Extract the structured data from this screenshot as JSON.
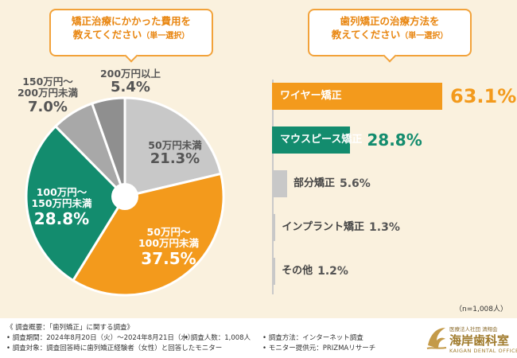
{
  "questions": {
    "q1_line1": "矯正治療にかかった費用を",
    "q1_line2": "教えてください",
    "q1_sub": "（単一選択）",
    "q2_line1": "歯列矯正の治療方法を",
    "q2_line2": "教えてください",
    "q2_sub": "（単一選択）"
  },
  "chart_data": [
    {
      "type": "pie",
      "title": "矯正治療にかかった費用を教えてください（単一選択）",
      "start_angle_deg": 0,
      "direction": "clockwise",
      "donut_hole": true,
      "slices": [
        {
          "name": "50万円未満",
          "value": 21.3,
          "label": "21.3%",
          "color": "#c8c8c8",
          "text_color": "#555555"
        },
        {
          "name": "50万円～100万円未満",
          "value": 37.5,
          "label": "37.5%",
          "color": "#f39a1c",
          "text_color": "#ffffff"
        },
        {
          "name": "100万円～150万円未満",
          "value": 28.8,
          "label": "28.8%",
          "color": "#138c6e",
          "text_color": "#ffffff"
        },
        {
          "name": "150万円～200万円未満",
          "value": 7.0,
          "label": "7.0%",
          "color": "#a8a8a8",
          "text_color": "#555555"
        },
        {
          "name": "200万円以上",
          "value": 5.4,
          "label": "5.4%",
          "color": "#8f8f8f",
          "text_color": "#555555"
        }
      ]
    },
    {
      "type": "bar",
      "orientation": "horizontal",
      "title": "歯列矯正の治療方法を教えてください（単一選択）",
      "xlim": [
        0,
        63.1
      ],
      "categories": [
        "ワイヤー矯正",
        "マウスピース矯正",
        "部分矯正",
        "インプラント矯正",
        "その他"
      ],
      "values": [
        63.1,
        28.8,
        5.6,
        1.3,
        1.2
      ],
      "value_labels": [
        "63.1%",
        "28.8%",
        "5.6%",
        "1.3%",
        "1.2%"
      ],
      "colors": [
        "#f39a1c",
        "#138c6e",
        "#c8c8c8",
        "#c8c8c8",
        "#c8c8c8"
      ]
    }
  ],
  "sample_note": "（n=1,008人）",
  "footer": {
    "line1": "《 調査概要：「歯列矯正」に関する調査》",
    "period": "• 調査期間：2024年8月20日（火）～2024年8月21日（水）",
    "people": "• 調査人数：1,008人",
    "method": "• 調査方法：インターネット調査",
    "target": "• 調査対象：調査回答時に歯列矯正経験者（女性）と回答したモニター",
    "provider": "• モニター提供元：PRIZMAリサーチ"
  },
  "logo": {
    "small": "医療法人社団 清翔会",
    "main": "海岸歯科室",
    "en": "KAIGAN DENTAL OFFICE"
  }
}
